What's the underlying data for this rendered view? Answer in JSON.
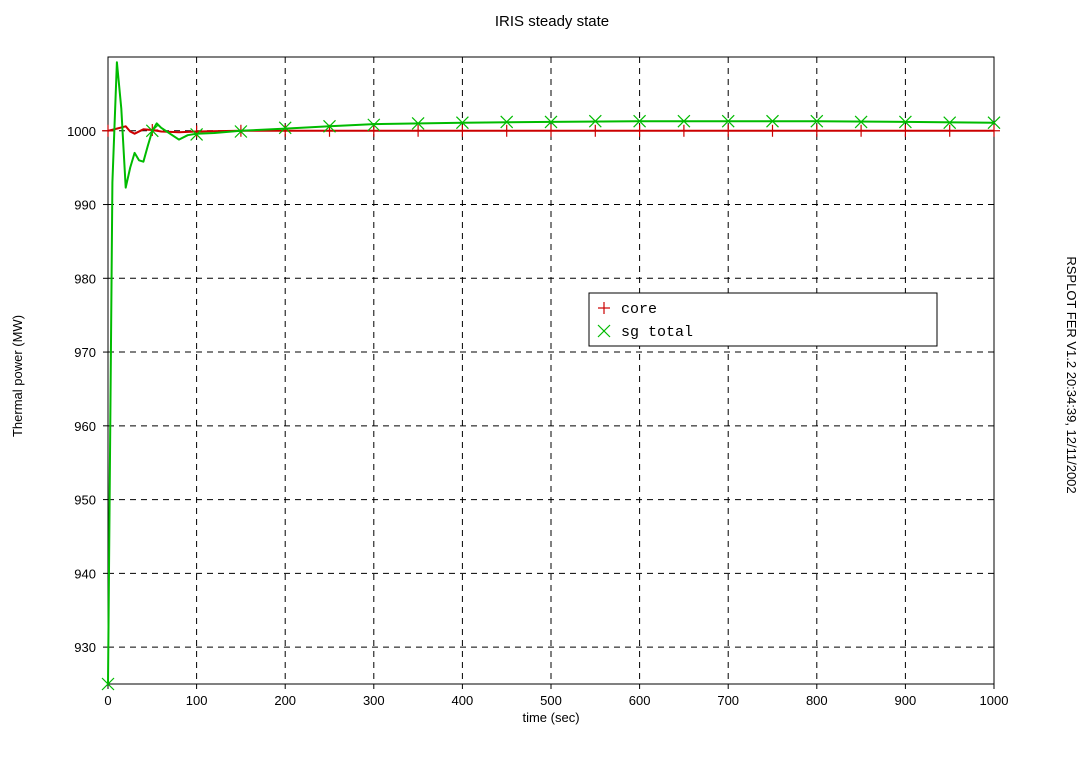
{
  "chart_data": {
    "type": "line",
    "title": "IRIS steady state",
    "xlabel": "time (sec)",
    "ylabel": "Thermal power  (MW)",
    "xlim": [
      0,
      1000
    ],
    "ylim": [
      925,
      1010
    ],
    "xticks": [
      0,
      100,
      200,
      300,
      400,
      500,
      600,
      700,
      800,
      900,
      1000
    ],
    "yticks": [
      930,
      940,
      950,
      960,
      970,
      980,
      990,
      1000
    ],
    "grid": true,
    "legend_position": "center-right",
    "side_note": "RSPLOT FER V1.2 20:34:39, 12/11/2002",
    "series": [
      {
        "name": "core",
        "color": "#cc0000",
        "marker": "plus",
        "x": [
          0,
          10,
          20,
          25,
          30,
          40,
          50,
          60,
          80,
          100,
          150,
          200,
          300,
          400,
          500,
          600,
          700,
          800,
          900,
          1000
        ],
        "y": [
          1000.0,
          1000.3,
          1000.6,
          999.9,
          999.6,
          1000.2,
          1000.1,
          999.9,
          999.8,
          999.9,
          1000.0,
          1000.0,
          1000.0,
          1000.0,
          1000.0,
          1000.0,
          1000.0,
          1000.0,
          1000.0,
          1000.0
        ],
        "marker_x": [
          0,
          50,
          100,
          150,
          200,
          250,
          300,
          350,
          400,
          450,
          500,
          550,
          600,
          650,
          700,
          750,
          800,
          850,
          900,
          950,
          1000
        ],
        "marker_y": [
          1000.0,
          1000.1,
          999.9,
          1000.0,
          1000.0,
          1000.0,
          1000.0,
          1000.0,
          1000.0,
          1000.0,
          1000.0,
          1000.0,
          1000.0,
          1000.0,
          1000.0,
          1000.0,
          1000.0,
          1000.0,
          1000.0,
          1000.0,
          1000.0
        ]
      },
      {
        "name": "sg total",
        "color": "#00bb00",
        "marker": "x",
        "x": [
          0,
          5,
          10,
          15,
          20,
          25,
          30,
          35,
          40,
          45,
          50,
          55,
          60,
          70,
          80,
          90,
          100,
          120,
          150,
          200,
          250,
          300,
          400,
          500,
          600,
          700,
          800,
          900,
          1000
        ],
        "y": [
          925,
          993,
          1009.3,
          1003,
          992.3,
          995,
          997,
          996,
          995.8,
          998,
          1000,
          1001,
          1000.4,
          999.6,
          998.8,
          999.4,
          999.6,
          999.7,
          1000.0,
          1000.3,
          1000.6,
          1000.9,
          1001.1,
          1001.2,
          1001.3,
          1001.3,
          1001.3,
          1001.2,
          1001.1
        ],
        "marker_x": [
          0,
          50,
          100,
          150,
          200,
          250,
          300,
          350,
          400,
          450,
          500,
          550,
          600,
          650,
          700,
          750,
          800,
          850,
          900,
          950,
          1000
        ],
        "marker_y": [
          925,
          1000.0,
          999.5,
          999.9,
          1000.4,
          1000.6,
          1000.8,
          1001.0,
          1001.1,
          1001.2,
          1001.2,
          1001.3,
          1001.3,
          1001.3,
          1001.3,
          1001.3,
          1001.3,
          1001.2,
          1001.2,
          1001.1,
          1001.1
        ]
      }
    ]
  }
}
